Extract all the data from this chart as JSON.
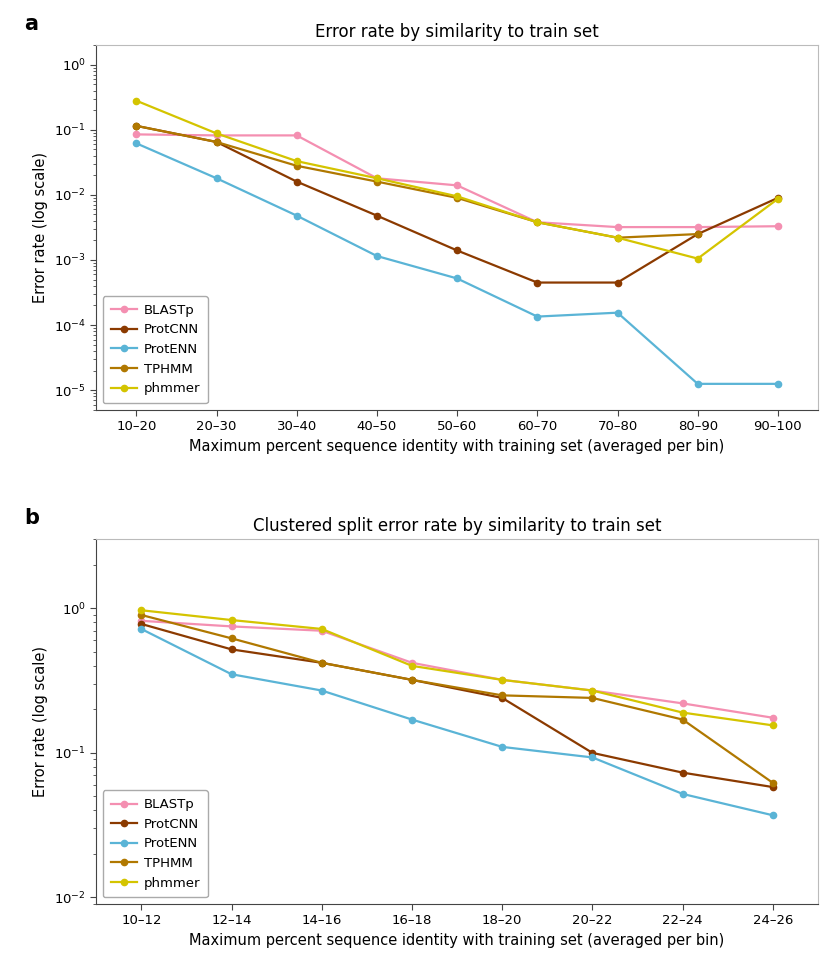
{
  "panel_a": {
    "title": "Error rate by similarity to train set",
    "xlabel": "Maximum percent sequence identity with training set (averaged per bin)",
    "ylabel": "Error rate (log scale)",
    "xtick_labels": [
      "10–20",
      "20–30",
      "30–40",
      "40–50",
      "50–60",
      "60–70",
      "70–80",
      "80–90",
      "90–100"
    ],
    "ylim": [
      5e-06,
      2.0
    ],
    "series": {
      "BLASTp": {
        "color": "#f48fb1",
        "values": [
          0.085,
          0.082,
          0.082,
          0.018,
          0.014,
          0.0038,
          0.0032,
          0.0032,
          0.0033
        ]
      },
      "ProtCNN": {
        "color": "#8B3A00",
        "values": [
          0.115,
          0.065,
          0.016,
          0.0048,
          0.0014,
          0.00045,
          0.00045,
          0.0025,
          0.009
        ]
      },
      "ProtENN": {
        "color": "#5ab4d6",
        "values": [
          0.062,
          0.018,
          0.0048,
          0.00115,
          0.00052,
          0.000135,
          0.000155,
          1.25e-05,
          1.25e-05
        ]
      },
      "TPHMM": {
        "color": "#b07800",
        "values": [
          0.115,
          0.065,
          0.028,
          0.016,
          0.009,
          0.0038,
          0.0022,
          0.0025,
          null
        ]
      },
      "phmmer": {
        "color": "#d4c400",
        "values": [
          0.28,
          0.088,
          0.033,
          0.018,
          0.0095,
          0.0038,
          0.0022,
          0.00105,
          0.0087
        ]
      }
    }
  },
  "panel_b": {
    "title": "Clustered split error rate by similarity to train set",
    "xlabel": "Maximum percent sequence identity with training set (averaged per bin)",
    "ylabel": "Error rate (log scale)",
    "xtick_labels": [
      "10–12",
      "12–14",
      "14–16",
      "16–18",
      "18–20",
      "20–22",
      "22–24",
      "24–26"
    ],
    "ylim": [
      0.009,
      3.0
    ],
    "series": {
      "BLASTp": {
        "color": "#f48fb1",
        "values": [
          0.82,
          0.75,
          0.7,
          0.42,
          0.32,
          0.27,
          0.22,
          0.175
        ]
      },
      "ProtCNN": {
        "color": "#8B3A00",
        "values": [
          0.78,
          0.52,
          0.42,
          0.32,
          0.24,
          0.1,
          0.073,
          0.058
        ]
      },
      "ProtENN": {
        "color": "#5ab4d6",
        "values": [
          0.72,
          0.35,
          0.27,
          0.17,
          0.11,
          0.093,
          0.052,
          0.037
        ]
      },
      "TPHMM": {
        "color": "#b07800",
        "values": [
          0.9,
          0.62,
          0.42,
          0.32,
          0.25,
          0.24,
          0.17,
          0.062
        ]
      },
      "phmmer": {
        "color": "#d4c400",
        "values": [
          0.97,
          0.83,
          0.72,
          0.4,
          0.32,
          0.27,
          0.19,
          0.155
        ]
      }
    }
  },
  "background_color": "#ffffff",
  "label_fontsize": 10.5,
  "title_fontsize": 12,
  "tick_fontsize": 9.5,
  "legend_fontsize": 9.5,
  "marker": "o",
  "markersize": 4.5,
  "linewidth": 1.6
}
